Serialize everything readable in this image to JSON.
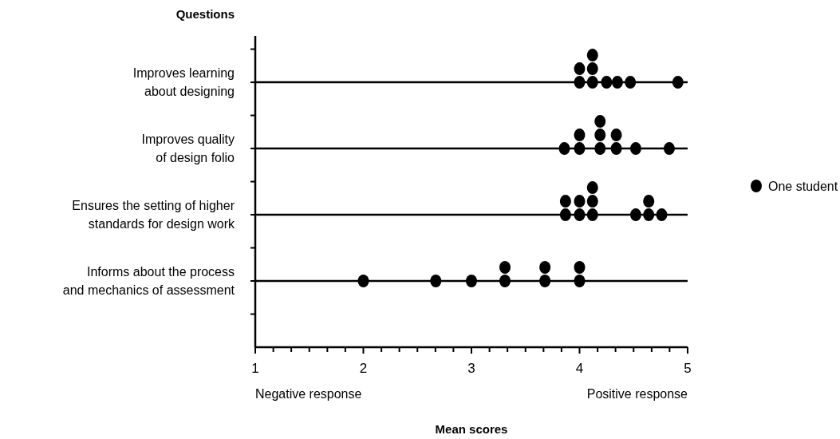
{
  "chart_data": {
    "type": "scatter",
    "orientation": "horizontal",
    "xlabel": "Mean scores",
    "ylabel": "Questions",
    "annotations": [
      "Negative response",
      "Positive response"
    ],
    "categories": [
      "Improves learning\nabout designing",
      "Improves quality\nof design folio",
      "Ensures the setting of higher\nstandards for design work",
      "Informs about the process\nand mechanics of assessment"
    ],
    "xlim": [
      1,
      5
    ],
    "xticks": [
      1,
      {
        "value": 1.167,
        "label": null
      },
      {
        "value": 1.333,
        "label": null
      },
      {
        "value": 1.5,
        "label": null
      },
      {
        "value": 1.667,
        "label": null
      },
      {
        "value": 1.833,
        "label": null
      },
      2,
      {
        "value": 2.167,
        "label": null
      },
      {
        "value": 2.333,
        "label": null
      },
      {
        "value": 2.5,
        "label": null
      },
      {
        "value": 2.667,
        "label": null
      },
      {
        "value": 2.833,
        "label": null
      },
      3,
      {
        "value": 3.167,
        "label": null
      },
      {
        "value": 3.333,
        "label": null
      },
      {
        "value": 3.5,
        "label": null
      },
      {
        "value": 3.667,
        "label": null
      },
      {
        "value": 3.833,
        "label": null
      },
      4,
      {
        "value": 4.167,
        "label": null
      },
      {
        "value": 4.333,
        "label": null
      },
      {
        "value": 4.5,
        "label": null
      },
      {
        "value": 4.667,
        "label": null
      },
      {
        "value": 4.833,
        "label": null
      },
      5
    ],
    "grid": "y",
    "marker": "circle",
    "legend": "right",
    "series": [
      {
        "name": "One student",
        "color": "#000000",
        "x": [
          "Improves learning\nabout designing",
          "Improves learning\nabout designing",
          "Improves learning\nabout designing",
          "Improves learning\nabout designing",
          "Improves learning\nabout designing",
          "Improves learning\nabout designing",
          "Improves learning\nabout designing",
          "Improves learning\nabout designing",
          "Improves learning\nabout designing",
          "Improves quality\nof design folio",
          "Improves quality\nof design folio",
          "Improves quality\nof design folio",
          "Improves quality\nof design folio",
          "Improves quality\nof design folio",
          "Improves quality\nof design folio",
          "Improves quality\nof design folio",
          "Improves quality\nof design folio",
          "Improves quality\nof design folio",
          "Improves quality\nof design folio",
          "Ensures the setting of higher\nstandards for design work",
          "Ensures the setting of higher\nstandards for design work",
          "Ensures the setting of higher\nstandards for design work",
          "Ensures the setting of higher\nstandards for design work",
          "Ensures the setting of higher\nstandards for design work",
          "Ensures the setting of higher\nstandards for design work",
          "Ensures the setting of higher\nstandards for design work",
          "Ensures the setting of higher\nstandards for design work",
          "Ensures the setting of higher\nstandards for design work",
          "Ensures the setting of higher\nstandards for design work",
          "Ensures the setting of higher\nstandards for design work",
          "Informs about the process\nand mechanics of assessment",
          "Informs about the process\nand mechanics of assessment",
          "Informs about the process\nand mechanics of assessment",
          "Informs about the process\nand mechanics of assessment",
          "Informs about the process\nand mechanics of assessment",
          "Informs about the process\nand mechanics of assessment",
          "Informs about the process\nand mechanics of assessment",
          "Informs about the process\nand mechanics of assessment",
          "Informs about the process\nand mechanics of assessment"
        ],
        "values": [
          4.0,
          4.0,
          4.12,
          4.12,
          4.12,
          4.25,
          4.35,
          4.47,
          4.91,
          3.86,
          4.0,
          4.0,
          4.19,
          4.19,
          4.19,
          4.34,
          4.34,
          4.52,
          4.83,
          3.87,
          3.87,
          4.0,
          4.0,
          4.12,
          4.12,
          4.12,
          4.52,
          4.64,
          4.64,
          4.76,
          2.0,
          2.67,
          3.0,
          3.31,
          3.31,
          3.68,
          3.68,
          4.0,
          4.0
        ]
      }
    ]
  }
}
